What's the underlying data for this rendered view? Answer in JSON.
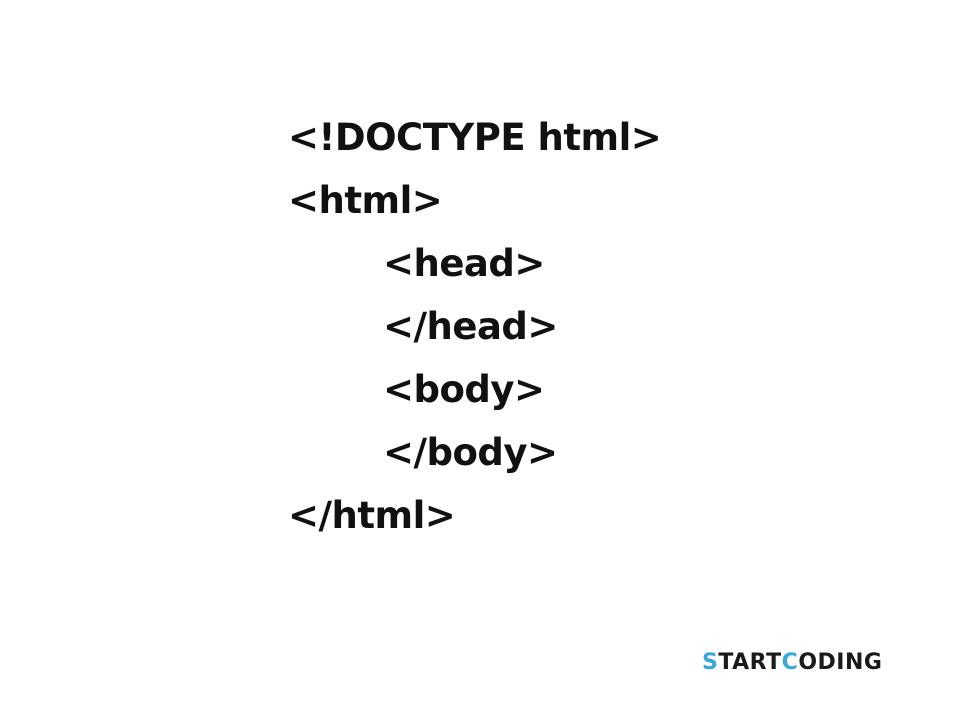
{
  "code": {
    "lines": [
      "<!DOCTYPE html>",
      "<html>",
      "<head>",
      "</head>",
      "<body>",
      "</body>",
      "</html>"
    ]
  },
  "logo": {
    "parts": [
      "S",
      "TART",
      "C",
      "ODING"
    ]
  }
}
